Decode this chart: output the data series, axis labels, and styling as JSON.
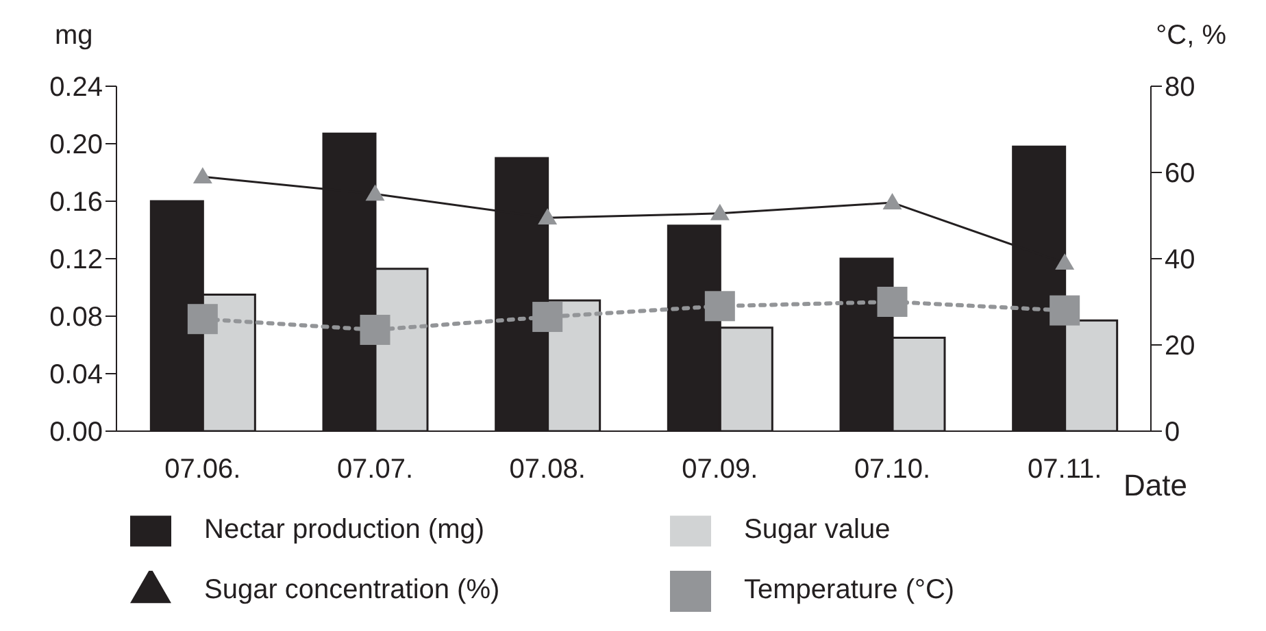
{
  "chart_data": {
    "type": "bar",
    "categories": [
      "07.06.",
      "07.07.",
      "07.08.",
      "07.09.",
      "07.10.",
      "07.11."
    ],
    "xlabel": "Date",
    "ylabel": "mg",
    "y2label": "°C, %",
    "ylim": [
      0,
      0.24
    ],
    "yticks": [
      {
        "value": 0,
        "label": "0.00"
      },
      {
        "value": 0.04,
        "label": "0.04"
      },
      {
        "value": 0.08,
        "label": "0.08"
      },
      {
        "value": 0.12,
        "label": "0.12"
      },
      {
        "value": 0.16,
        "label": "0.16"
      },
      {
        "value": 0.2,
        "label": "0.20"
      },
      {
        "value": 0.24,
        "label": "0.24"
      }
    ],
    "y2lim": [
      0,
      80
    ],
    "y2ticks": [
      0,
      20,
      40,
      60,
      80
    ],
    "grid": false,
    "legend": "bottom",
    "series": [
      {
        "name": "Nectar production (mg)",
        "color": "#231f20",
        "values": [
          0.16,
          0.207,
          0.19,
          0.143,
          0.12,
          0.198
        ]
      },
      {
        "name": "Sugar value",
        "color": "#d1d3d4",
        "values": [
          0.095,
          0.113,
          0.091,
          0.072,
          0.065,
          0.077
        ]
      },
      {
        "name": "Sugar concentration (%)",
        "type": "line",
        "axis": "y2",
        "color": "#231f20",
        "marker": "triangle",
        "line_style": "solid",
        "values": [
          59,
          55,
          49.5,
          50.5,
          53,
          39
        ]
      },
      {
        "name": "Temperature (°C)",
        "type": "line",
        "axis": "y2",
        "color": "#939598",
        "marker": "square",
        "line_style": "dotted",
        "values": [
          26,
          23.5,
          26.5,
          29,
          30,
          28
        ]
      }
    ]
  }
}
